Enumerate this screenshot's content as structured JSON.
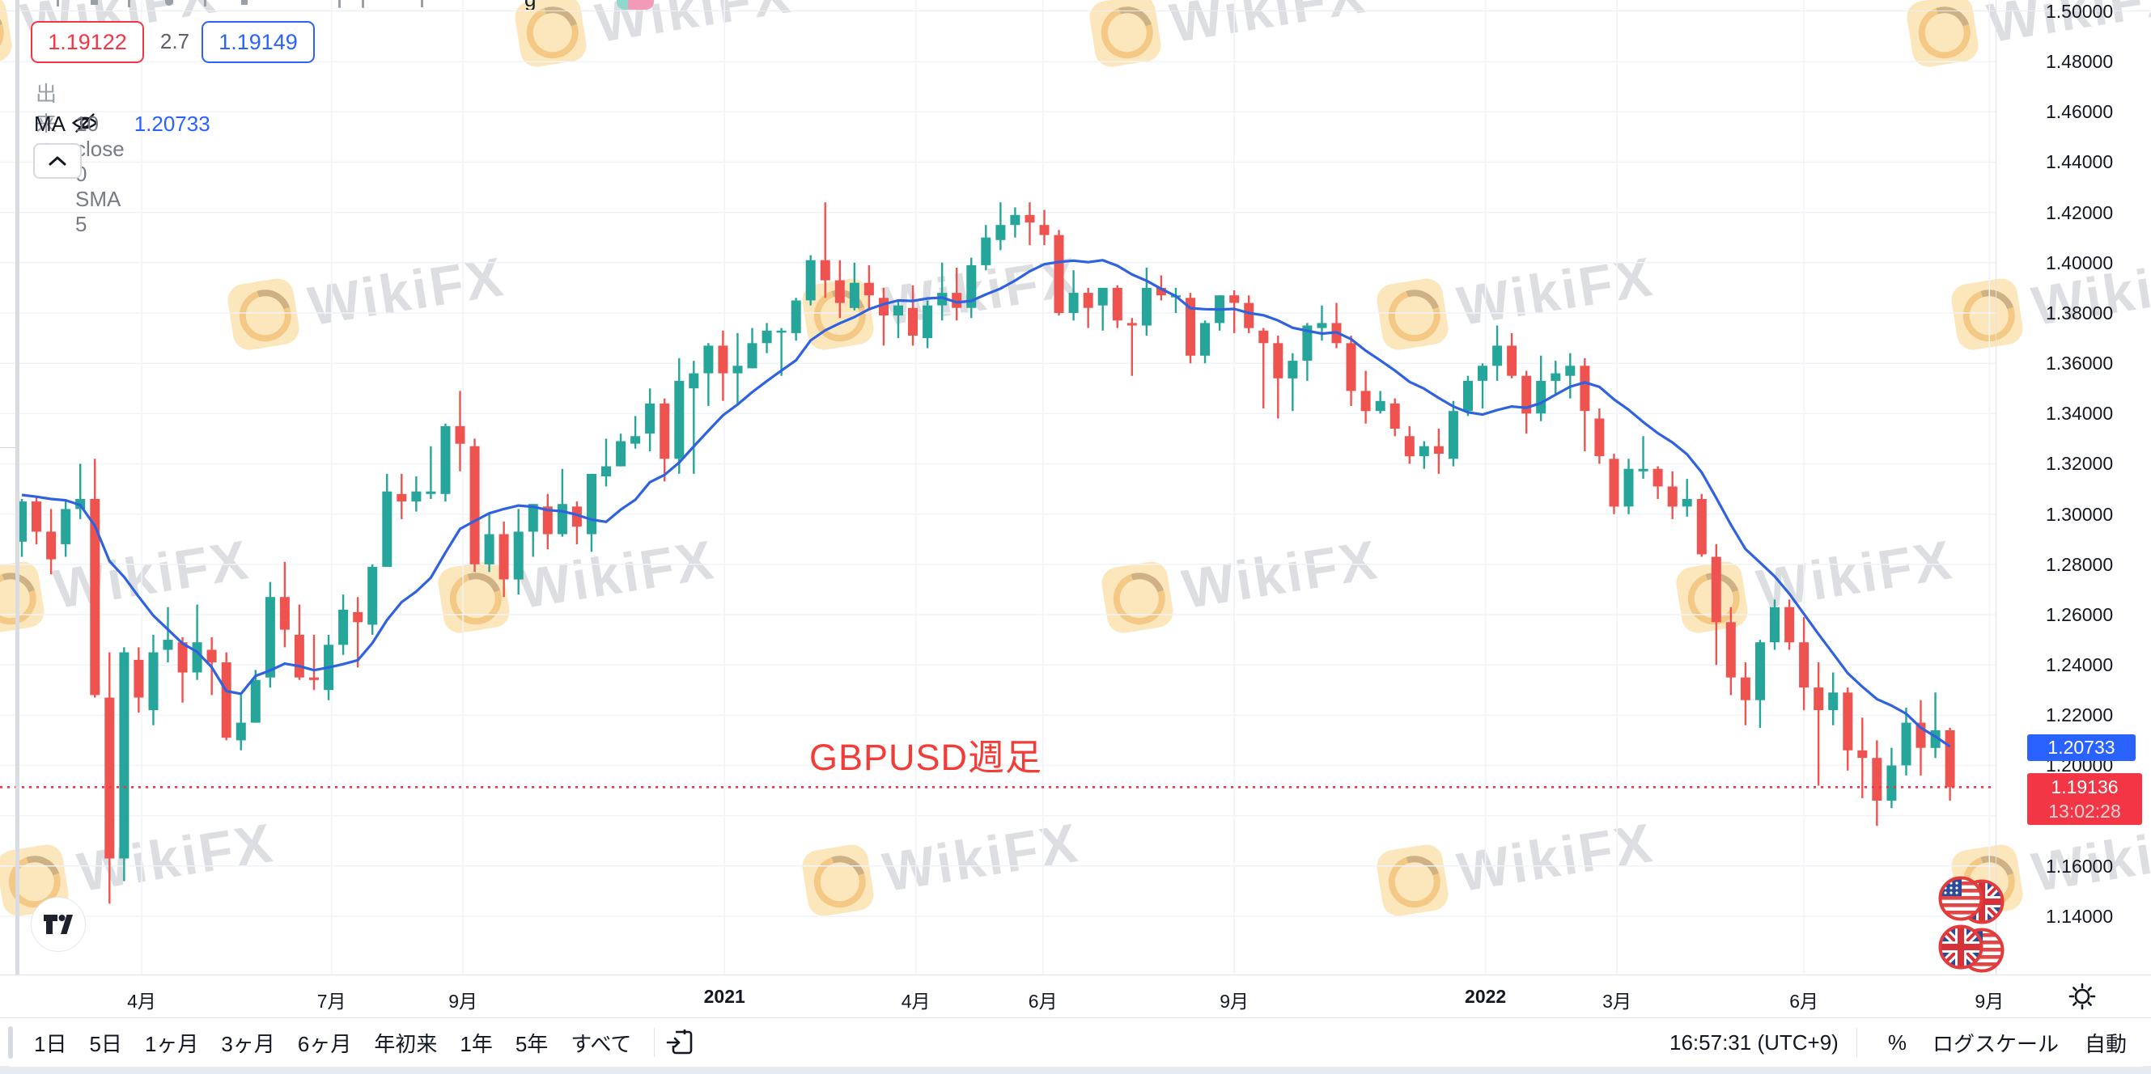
{
  "watermark": {
    "text": "WikiFX"
  },
  "top_strip": {
    "glyph": "g"
  },
  "legend": {
    "bid": "1.19122",
    "spread": "2.7",
    "ask": "1.19149",
    "volume_label": "出来高",
    "ma_label": "MA",
    "ma_params": "10 close 0 SMA 5",
    "ma_value": "1.20733"
  },
  "annotation": {
    "text": "GBPUSD週足"
  },
  "price_axis": {
    "labels": [
      "1.50000",
      "1.48000",
      "1.46000",
      "1.44000",
      "1.42000",
      "1.40000",
      "1.38000",
      "1.36000",
      "1.34000",
      "1.32000",
      "1.30000",
      "1.28000",
      "1.26000",
      "1.24000",
      "1.22000",
      "1.20000",
      "1.16000",
      "1.14000"
    ],
    "ma_label_value": "1.20733",
    "current_price_label": "1.19136",
    "countdown": "13:02:28"
  },
  "time_axis": {
    "ticks": [
      {
        "label": "4月",
        "i": 8.2,
        "bold": false
      },
      {
        "label": "7月",
        "i": 21.2,
        "bold": false
      },
      {
        "label": "9月",
        "i": 30.2,
        "bold": false
      },
      {
        "label": "2021",
        "i": 48.1,
        "bold": true
      },
      {
        "label": "4月",
        "i": 61.2,
        "bold": false
      },
      {
        "label": "6月",
        "i": 69.9,
        "bold": false
      },
      {
        "label": "9月",
        "i": 83.0,
        "bold": false
      },
      {
        "label": "2022",
        "i": 100.2,
        "bold": true
      },
      {
        "label": "3月",
        "i": 109.2,
        "bold": false
      },
      {
        "label": "6月",
        "i": 122.0,
        "bold": false
      },
      {
        "label": "9月",
        "i": 134.7,
        "bold": false
      }
    ]
  },
  "toolbar": {
    "ranges": [
      "1日",
      "5日",
      "1ヶ月",
      "3ヶ月",
      "6ヶ月",
      "年初来",
      "1年",
      "5年",
      "すべて"
    ],
    "clock": "16:57:31 (UTC+9)",
    "percent_label": "%",
    "log_label": "ログスケール",
    "auto_label": "自動"
  },
  "chart_data": {
    "type": "candlestick",
    "title": "GBPUSD週足",
    "interval": "1W",
    "start_week": "2020-02-03",
    "ylim": [
      1.117,
      1.503
    ],
    "grid": true,
    "current_price": 1.19136,
    "ma": {
      "type": "SMA",
      "length": 10,
      "source": "close",
      "last_value": 1.20733
    },
    "colors": {
      "up": "#26a69a",
      "down": "#ef5350",
      "ma_line": "#2f62e0",
      "current_line": "#f23645",
      "grid": "#f0f3fa"
    },
    "pre_closes": [
      1.3,
      1.291,
      1.307,
      1.325,
      1.311,
      1.303,
      1.308,
      1.306,
      1.32
    ],
    "candles": [
      [
        1.289,
        1.306,
        1.283,
        1.305
      ],
      [
        1.305,
        1.307,
        1.288,
        1.293
      ],
      [
        1.293,
        1.302,
        1.276,
        1.282
      ],
      [
        1.288,
        1.306,
        1.283,
        1.302
      ],
      [
        1.302,
        1.32,
        1.298,
        1.306
      ],
      [
        1.306,
        1.322,
        1.227,
        1.228
      ],
      [
        1.227,
        1.245,
        1.145,
        1.163
      ],
      [
        1.163,
        1.247,
        1.154,
        1.245
      ],
      [
        1.242,
        1.247,
        1.221,
        1.227
      ],
      [
        1.222,
        1.252,
        1.216,
        1.245
      ],
      [
        1.246,
        1.263,
        1.241,
        1.25
      ],
      [
        1.249,
        1.251,
        1.225,
        1.237
      ],
      [
        1.237,
        1.264,
        1.234,
        1.249
      ],
      [
        1.246,
        1.251,
        1.228,
        1.241
      ],
      [
        1.241,
        1.245,
        1.21,
        1.211
      ],
      [
        1.21,
        1.228,
        1.206,
        1.217
      ],
      [
        1.217,
        1.238,
        1.217,
        1.234
      ],
      [
        1.235,
        1.273,
        1.231,
        1.267
      ],
      [
        1.267,
        1.281,
        1.247,
        1.254
      ],
      [
        1.252,
        1.264,
        1.234,
        1.235
      ],
      [
        1.235,
        1.252,
        1.23,
        1.234
      ],
      [
        1.23,
        1.252,
        1.226,
        1.248
      ],
      [
        1.248,
        1.268,
        1.244,
        1.262
      ],
      [
        1.261,
        1.267,
        1.239,
        1.257
      ],
      [
        1.256,
        1.28,
        1.252,
        1.279
      ],
      [
        1.279,
        1.316,
        1.279,
        1.309
      ],
      [
        1.308,
        1.316,
        1.298,
        1.305
      ],
      [
        1.305,
        1.315,
        1.301,
        1.309
      ],
      [
        1.308,
        1.327,
        1.306,
        1.309
      ],
      [
        1.308,
        1.336,
        1.305,
        1.335
      ],
      [
        1.335,
        1.349,
        1.317,
        1.328
      ],
      [
        1.327,
        1.33,
        1.277,
        1.28
      ],
      [
        1.28,
        1.3,
        1.277,
        1.292
      ],
      [
        1.292,
        1.297,
        1.267,
        1.274
      ],
      [
        1.274,
        1.302,
        1.268,
        1.293
      ],
      [
        1.293,
        1.304,
        1.283,
        1.304
      ],
      [
        1.303,
        1.308,
        1.286,
        1.292
      ],
      [
        1.292,
        1.318,
        1.291,
        1.304
      ],
      [
        1.303,
        1.305,
        1.288,
        1.295
      ],
      [
        1.292,
        1.316,
        1.285,
        1.316
      ],
      [
        1.315,
        1.33,
        1.311,
        1.319
      ],
      [
        1.319,
        1.332,
        1.319,
        1.329
      ],
      [
        1.328,
        1.339,
        1.326,
        1.331
      ],
      [
        1.332,
        1.35,
        1.325,
        1.344
      ],
      [
        1.344,
        1.346,
        1.313,
        1.322
      ],
      [
        1.322,
        1.362,
        1.316,
        1.353
      ],
      [
        1.35,
        1.361,
        1.316,
        1.356
      ],
      [
        1.356,
        1.368,
        1.343,
        1.367
      ],
      [
        1.367,
        1.373,
        1.345,
        1.356
      ],
      [
        1.356,
        1.372,
        1.344,
        1.359
      ],
      [
        1.358,
        1.374,
        1.358,
        1.368
      ],
      [
        1.368,
        1.376,
        1.364,
        1.373
      ],
      [
        1.373,
        1.374,
        1.355,
        1.373
      ],
      [
        1.372,
        1.386,
        1.369,
        1.385
      ],
      [
        1.385,
        1.403,
        1.383,
        1.401
      ],
      [
        1.401,
        1.424,
        1.386,
        1.393
      ],
      [
        1.393,
        1.401,
        1.378,
        1.384
      ],
      [
        1.382,
        1.4,
        1.381,
        1.392
      ],
      [
        1.392,
        1.399,
        1.381,
        1.387
      ],
      [
        1.386,
        1.39,
        1.367,
        1.379
      ],
      [
        1.379,
        1.385,
        1.37,
        1.383
      ],
      [
        1.382,
        1.391,
        1.367,
        1.371
      ],
      [
        1.37,
        1.385,
        1.366,
        1.383
      ],
      [
        1.383,
        1.4,
        1.377,
        1.388
      ],
      [
        1.388,
        1.398,
        1.377,
        1.382
      ],
      [
        1.382,
        1.402,
        1.378,
        1.399
      ],
      [
        1.399,
        1.415,
        1.397,
        1.41
      ],
      [
        1.409,
        1.424,
        1.405,
        1.415
      ],
      [
        1.415,
        1.422,
        1.41,
        1.419
      ],
      [
        1.419,
        1.424,
        1.407,
        1.416
      ],
      [
        1.415,
        1.421,
        1.407,
        1.411
      ],
      [
        1.411,
        1.413,
        1.379,
        1.38
      ],
      [
        1.38,
        1.397,
        1.377,
        1.388
      ],
      [
        1.388,
        1.39,
        1.374,
        1.382
      ],
      [
        1.383,
        1.39,
        1.373,
        1.39
      ],
      [
        1.39,
        1.391,
        1.374,
        1.377
      ],
      [
        1.376,
        1.378,
        1.355,
        1.375
      ],
      [
        1.375,
        1.398,
        1.371,
        1.39
      ],
      [
        1.39,
        1.395,
        1.385,
        1.387
      ],
      [
        1.387,
        1.39,
        1.38,
        1.387
      ],
      [
        1.386,
        1.388,
        1.36,
        1.363
      ],
      [
        1.363,
        1.377,
        1.36,
        1.376
      ],
      [
        1.376,
        1.387,
        1.373,
        1.387
      ],
      [
        1.387,
        1.389,
        1.372,
        1.384
      ],
      [
        1.384,
        1.387,
        1.372,
        1.374
      ],
      [
        1.373,
        1.374,
        1.342,
        1.368
      ],
      [
        1.368,
        1.371,
        1.338,
        1.354
      ],
      [
        1.354,
        1.364,
        1.341,
        1.361
      ],
      [
        1.361,
        1.376,
        1.353,
        1.375
      ],
      [
        1.374,
        1.383,
        1.369,
        1.376
      ],
      [
        1.376,
        1.384,
        1.366,
        1.368
      ],
      [
        1.368,
        1.371,
        1.343,
        1.349
      ],
      [
        1.349,
        1.357,
        1.336,
        1.341
      ],
      [
        1.341,
        1.349,
        1.34,
        1.345
      ],
      [
        1.344,
        1.346,
        1.331,
        1.334
      ],
      [
        1.331,
        1.335,
        1.32,
        1.323
      ],
      [
        1.323,
        1.329,
        1.318,
        1.327
      ],
      [
        1.327,
        1.334,
        1.316,
        1.324
      ],
      [
        1.322,
        1.345,
        1.319,
        1.341
      ],
      [
        1.341,
        1.355,
        1.339,
        1.353
      ],
      [
        1.353,
        1.36,
        1.342,
        1.359
      ],
      [
        1.359,
        1.375,
        1.353,
        1.367
      ],
      [
        1.367,
        1.372,
        1.354,
        1.355
      ],
      [
        1.355,
        1.357,
        1.332,
        1.34
      ],
      [
        1.34,
        1.363,
        1.337,
        1.353
      ],
      [
        1.353,
        1.361,
        1.348,
        1.356
      ],
      [
        1.355,
        1.364,
        1.346,
        1.359
      ],
      [
        1.359,
        1.362,
        1.325,
        1.341
      ],
      [
        1.338,
        1.342,
        1.32,
        1.323
      ],
      [
        1.322,
        1.324,
        1.3,
        1.303
      ],
      [
        1.303,
        1.322,
        1.3,
        1.318
      ],
      [
        1.317,
        1.331,
        1.314,
        1.318
      ],
      [
        1.318,
        1.319,
        1.306,
        1.311
      ],
      [
        1.311,
        1.317,
        1.298,
        1.303
      ],
      [
        1.303,
        1.314,
        1.299,
        1.306
      ],
      [
        1.306,
        1.308,
        1.283,
        1.284
      ],
      [
        1.283,
        1.288,
        1.24,
        1.257
      ],
      [
        1.257,
        1.263,
        1.228,
        1.235
      ],
      [
        1.235,
        1.241,
        1.216,
        1.226
      ],
      [
        1.226,
        1.25,
        1.215,
        1.249
      ],
      [
        1.249,
        1.266,
        1.246,
        1.263
      ],
      [
        1.263,
        1.266,
        1.246,
        1.249
      ],
      [
        1.249,
        1.259,
        1.222,
        1.231
      ],
      [
        1.231,
        1.241,
        1.192,
        1.222
      ],
      [
        1.222,
        1.237,
        1.216,
        1.229
      ],
      [
        1.229,
        1.231,
        1.198,
        1.206
      ],
      [
        1.206,
        1.219,
        1.187,
        1.203
      ],
      [
        1.203,
        1.21,
        1.176,
        1.186
      ],
      [
        1.186,
        1.207,
        1.183,
        1.2
      ],
      [
        1.2,
        1.223,
        1.196,
        1.217
      ],
      [
        1.217,
        1.226,
        1.196,
        1.207
      ],
      [
        1.207,
        1.229,
        1.203,
        1.214
      ],
      [
        1.214,
        1.215,
        1.186,
        1.1914
      ]
    ]
  }
}
